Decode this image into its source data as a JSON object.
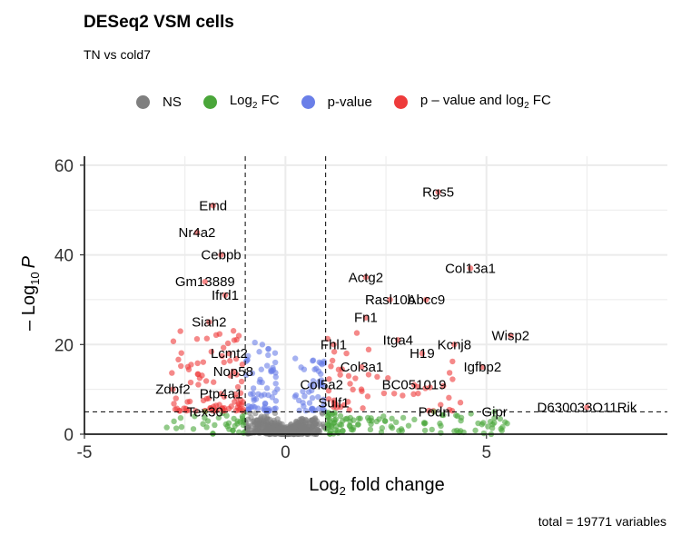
{
  "chart_data": {
    "type": "scatter",
    "title": "DESeq2 VSM cells",
    "subtitle": "TN vs cold7",
    "caption": "total = 19771 variables",
    "xlabel_base": "Log",
    "xlabel_sub": "2",
    "xlabel_rest": " fold change",
    "ylabel_pre": "– Log",
    "ylabel_sub": "10",
    "ylabel_var": "P",
    "xlim": [
      -5,
      9.5
    ],
    "ylim": [
      0,
      62
    ],
    "x_ticks": [
      -5,
      0,
      5
    ],
    "x_tick_labels": [
      "-5",
      "0",
      "5"
    ],
    "y_ticks": [
      0,
      20,
      40,
      60
    ],
    "y_tick_labels": [
      "0",
      "20",
      "40",
      "60"
    ],
    "grid": true,
    "legend_position": "top",
    "thresholds": {
      "log2fc": [
        -1,
        1
      ],
      "neg_log10_p": 5
    },
    "colors": {
      "NS": "#7f7f7f",
      "Log2FC": "#4aa63a",
      "pvalue": "#6a7fe8",
      "both": "#ee3b3b"
    },
    "legend": [
      {
        "key": "NS",
        "color": "#7f7f7f",
        "label": "NS"
      },
      {
        "key": "Log2FC",
        "color": "#4aa63a",
        "label_base": "Log",
        "label_sub": "2",
        "label_rest": " FC"
      },
      {
        "key": "pvalue",
        "color": "#6a7fe8",
        "label": "p-value"
      },
      {
        "key": "both",
        "color": "#ee3b3b",
        "label_base": "p – value and log",
        "label_sub": "2",
        "label_rest": " FC"
      }
    ],
    "labeled_genes": [
      {
        "name": "Rgs5",
        "x": 3.8,
        "y": 54
      },
      {
        "name": "Emd",
        "x": -1.8,
        "y": 51
      },
      {
        "name": "Nr4a2",
        "x": -2.2,
        "y": 45
      },
      {
        "name": "Col13a1",
        "x": 4.6,
        "y": 37
      },
      {
        "name": "Cebpb",
        "x": -1.6,
        "y": 40
      },
      {
        "name": "Actg2",
        "x": 2.0,
        "y": 35
      },
      {
        "name": "Gm13889",
        "x": -2.0,
        "y": 34
      },
      {
        "name": "Abcc9",
        "x": 3.5,
        "y": 30
      },
      {
        "name": "Rasl10b",
        "x": 2.6,
        "y": 30
      },
      {
        "name": "Ifrd1",
        "x": -1.5,
        "y": 31
      },
      {
        "name": "Fn1",
        "x": 2.0,
        "y": 26
      },
      {
        "name": "Siah2",
        "x": -1.9,
        "y": 25
      },
      {
        "name": "Wisp2",
        "x": 5.6,
        "y": 22
      },
      {
        "name": "Itga4",
        "x": 2.8,
        "y": 21
      },
      {
        "name": "Kcnj8",
        "x": 4.2,
        "y": 20
      },
      {
        "name": "Fhl1",
        "x": 1.2,
        "y": 20
      },
      {
        "name": "Lcmt2",
        "x": -1.4,
        "y": 18
      },
      {
        "name": "H19",
        "x": 3.4,
        "y": 18
      },
      {
        "name": "Col3a1",
        "x": 1.9,
        "y": 15
      },
      {
        "name": "Igfbp2",
        "x": 4.9,
        "y": 15
      },
      {
        "name": "Nop58",
        "x": -1.3,
        "y": 14
      },
      {
        "name": "Col5a2",
        "x": 0.9,
        "y": 11
      },
      {
        "name": "BC051019",
        "x": 3.2,
        "y": 11
      },
      {
        "name": "Zdbf2",
        "x": -2.8,
        "y": 10
      },
      {
        "name": "Ptp4a1",
        "x": -1.6,
        "y": 9
      },
      {
        "name": "Sulf1",
        "x": 1.2,
        "y": 7
      },
      {
        "name": "Tex30",
        "x": -2.0,
        "y": 5
      },
      {
        "name": "Podn",
        "x": 3.7,
        "y": 5
      },
      {
        "name": "Gipr",
        "x": 5.2,
        "y": 5
      },
      {
        "name": "D630033O11Rik",
        "x": 7.5,
        "y": 6
      }
    ]
  }
}
